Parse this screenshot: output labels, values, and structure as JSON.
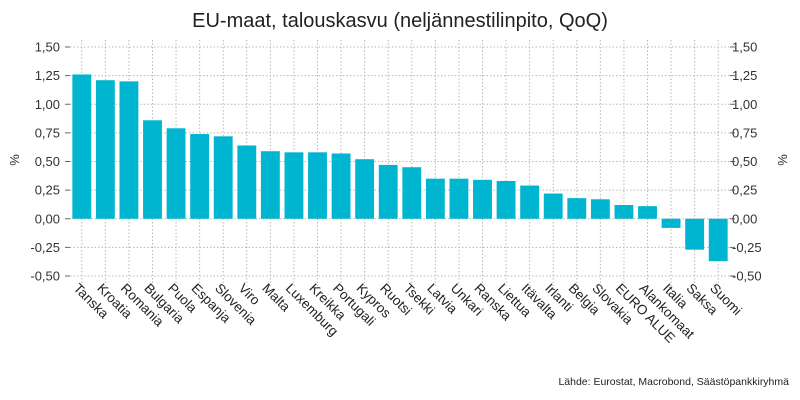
{
  "chart_data": {
    "type": "bar",
    "title": "EU-maat, talouskasvu (neljännestilinpito, QoQ)",
    "ylabel": "%",
    "ylabel_right": "%",
    "source": "Lähde: Eurostat, Macrobond, Säästöpankkiryhmä",
    "ylim": [
      -0.55,
      1.55
    ],
    "yticks": [
      1.5,
      1.25,
      1.0,
      0.75,
      0.5,
      0.25,
      0.0,
      -0.25,
      -0.5
    ],
    "ytick_labels": [
      "1,50",
      "1,25",
      "1,00",
      "0,75",
      "0,50",
      "0,25",
      "0,00",
      "-0,25",
      "-0,50"
    ],
    "grid": true,
    "bar_color": "#00b5cf",
    "categories": [
      "Tanska",
      "Kroatia",
      "Romania",
      "Bulgaria",
      "Puola",
      "Espanja",
      "Slovenia",
      "Viro",
      "Malta",
      "Luxemburg",
      "Kreikka",
      "Portugali",
      "Kypros",
      "Ruotsi",
      "Tsekki",
      "Latvia",
      "Unkari",
      "Ranska",
      "Liettua",
      "Itävalta",
      "Irlanti",
      "Belgia",
      "Slovakia",
      "EURO ALUE",
      "Alankomaat",
      "Italia",
      "Saksa",
      "Suomi"
    ],
    "values": [
      1.26,
      1.21,
      1.2,
      0.86,
      0.79,
      0.74,
      0.72,
      0.64,
      0.59,
      0.58,
      0.58,
      0.57,
      0.52,
      0.47,
      0.45,
      0.35,
      0.35,
      0.34,
      0.33,
      0.29,
      0.22,
      0.18,
      0.17,
      0.12,
      0.11,
      -0.08,
      -0.27,
      -0.37
    ]
  }
}
